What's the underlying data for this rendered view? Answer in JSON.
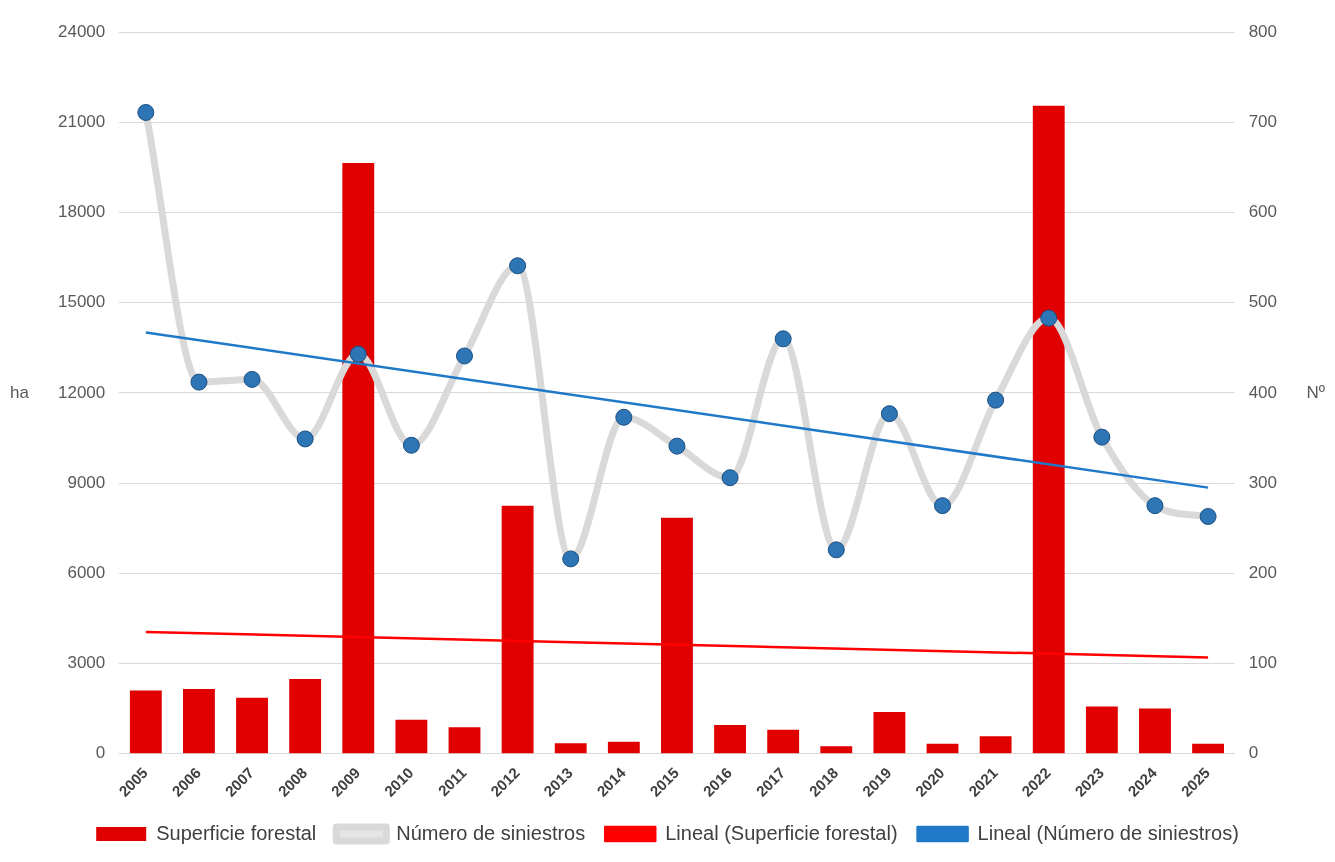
{
  "chart_data": {
    "type": "bar",
    "ylabel": "ha",
    "y2label": "Nº",
    "categories": [
      "2005",
      "2006",
      "2007",
      "2008",
      "2009",
      "2010",
      "2011",
      "2012",
      "2013",
      "2014",
      "2015",
      "2016",
      "2017",
      "2018",
      "2019",
      "2020",
      "2021",
      "2022",
      "2023",
      "2024",
      "2025"
    ],
    "series": [
      {
        "name": "Superficie forestal",
        "color": "#e00000",
        "values": [
          2100,
          2150,
          1860,
          2480,
          19650,
          1130,
          880,
          8250,
          350,
          400,
          7850,
          950,
          800,
          250,
          1390,
          330,
          580,
          21550,
          1570,
          1500,
          330
        ]
      },
      {
        "name": "Número de siniestros",
        "type": "line",
        "axis": "y2",
        "color": "#d9d9d9",
        "marker": "circle",
        "values": [
          711,
          412,
          415,
          349,
          443,
          342,
          441,
          541,
          216,
          373,
          341,
          306,
          460,
          226,
          377,
          275,
          392,
          483,
          351,
          275,
          263
        ]
      },
      {
        "name": "Lineal (Superficie forestal)",
        "type": "line",
        "color": "#ff0000",
        "values": [
          4050,
          null,
          null,
          null,
          null,
          null,
          null,
          null,
          null,
          null,
          null,
          null,
          null,
          null,
          null,
          null,
          null,
          null,
          null,
          null,
          3200
        ]
      },
      {
        "name": "Lineal (Número de siniestros)",
        "type": "line",
        "axis": "y2",
        "color": "#1f78c8",
        "values": [
          467,
          null,
          null,
          null,
          null,
          null,
          null,
          null,
          null,
          null,
          null,
          null,
          null,
          null,
          null,
          null,
          null,
          null,
          null,
          null,
          295
        ]
      }
    ],
    "ylim": [
      0,
      24000
    ],
    "yticks": [
      0,
      3000,
      6000,
      9000,
      12000,
      15000,
      18000,
      21000,
      24000
    ],
    "y2lim": [
      0,
      800
    ],
    "y2ticks": [
      0,
      100,
      200,
      300,
      400,
      500,
      600,
      700,
      800
    ],
    "grid": "y",
    "legend": "bottom"
  }
}
